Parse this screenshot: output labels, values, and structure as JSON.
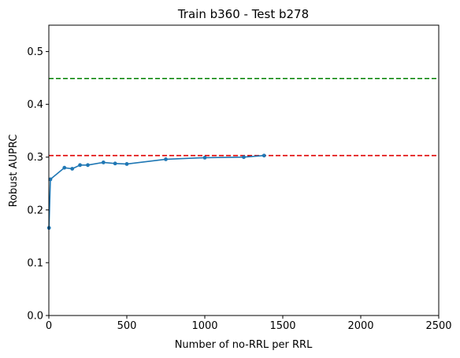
{
  "chart_data": {
    "type": "line",
    "title": "Train b360 - Test b278",
    "xlabel": "Number of no-RRL per RRL",
    "ylabel": "Robust AUPRC",
    "xlim": [
      0,
      2500
    ],
    "ylim": [
      0,
      0.55
    ],
    "x_ticks": [
      0,
      500,
      1000,
      1500,
      2000,
      2500
    ],
    "x_tick_labels": [
      "0",
      "500",
      "1000",
      "1500",
      "2000",
      "2500"
    ],
    "y_ticks": [
      0.0,
      0.1,
      0.2,
      0.3,
      0.4,
      0.5
    ],
    "y_tick_labels": [
      "0.0",
      "0.1",
      "0.2",
      "0.3",
      "0.4",
      "0.5"
    ],
    "grid": false,
    "series": [
      {
        "color": "#1f77b4",
        "marker": "circle",
        "x": [
          1,
          10,
          100,
          150,
          200,
          250,
          350,
          425,
          500,
          750,
          1000,
          1250,
          1380
        ],
        "y": [
          0.166,
          0.258,
          0.28,
          0.278,
          0.285,
          0.285,
          0.29,
          0.288,
          0.287,
          0.296,
          0.299,
          0.3,
          0.303
        ]
      }
    ],
    "reference_lines": [
      {
        "orientation": "horizontal",
        "y": 0.449,
        "color": "#008000",
        "style": "dashed"
      },
      {
        "orientation": "horizontal",
        "y": 0.303,
        "color": "#e00000",
        "style": "dashed"
      }
    ]
  }
}
